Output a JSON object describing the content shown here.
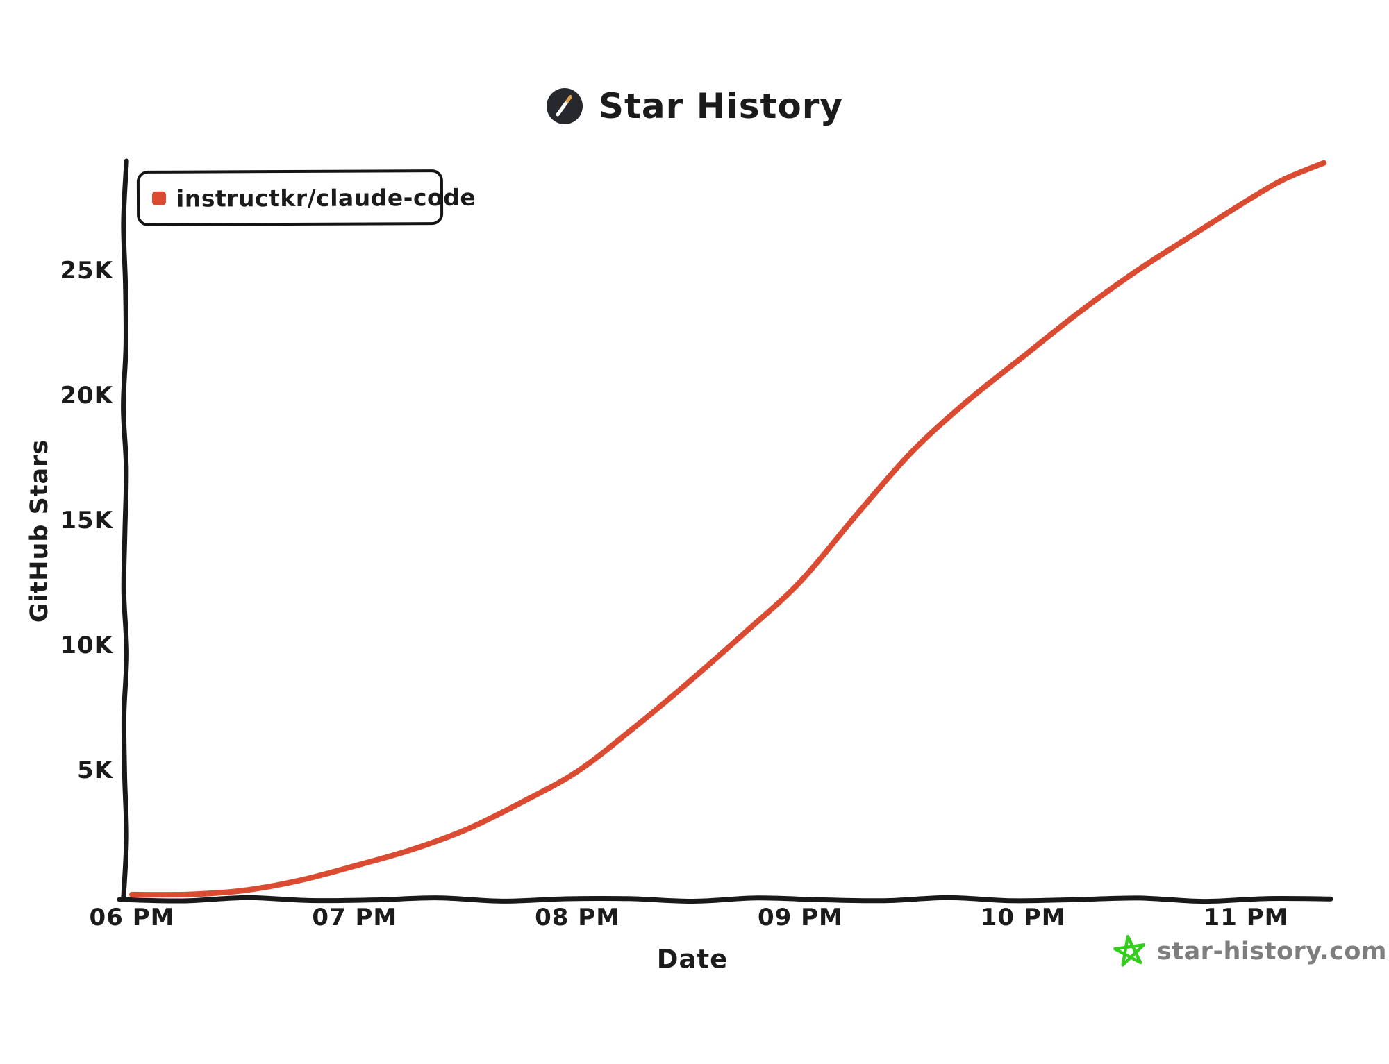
{
  "header": {
    "title": "Star History"
  },
  "legend": {
    "series_label": "instructkr/claude-code",
    "swatch_color": "#DB4B32"
  },
  "axes": {
    "y_title": "GitHub Stars",
    "x_title": "Date"
  },
  "footer": {
    "site": "star-history.com"
  },
  "colors": {
    "line": "#DB4B32",
    "axis": "#191919",
    "text": "#1b1b1b",
    "watermark_text": "#7e7e7e",
    "watermark_star": "#33CC1F",
    "logo_bg": "#26282D",
    "logo_wand": "#ffffff",
    "logo_tip": "#E0A04E",
    "background": "#ffffff"
  },
  "chart_data": {
    "type": "line",
    "title": "Star History",
    "xlabel": "Date",
    "ylabel": "GitHub Stars",
    "grid": false,
    "legend_position": "top-left",
    "style": "hand-drawn-xkcd",
    "x_tick_labels": [
      "06 PM",
      "07 PM",
      "08 PM",
      "09 PM",
      "10 PM",
      "11 PM"
    ],
    "x_tick_minutes": [
      0,
      60,
      120,
      180,
      240,
      300
    ],
    "y_tick_labels": [
      "5K",
      "10K",
      "15K",
      "20K",
      "25K"
    ],
    "y_tick_values": [
      5000,
      10000,
      15000,
      20000,
      25000
    ],
    "ylim": [
      0,
      29500
    ],
    "x_range_minutes": [
      0,
      321
    ],
    "series": [
      {
        "name": "instructkr/claude-code",
        "color": "#DB4B32",
        "points": [
          {
            "time": "6:00 PM",
            "minutes": 0,
            "stars": 30
          },
          {
            "time": "6:15 PM",
            "minutes": 15,
            "stars": 80
          },
          {
            "time": "6:30 PM",
            "minutes": 30,
            "stars": 180
          },
          {
            "time": "6:45 PM",
            "minutes": 45,
            "stars": 550
          },
          {
            "time": "7:00 PM",
            "minutes": 60,
            "stars": 1200
          },
          {
            "time": "7:15 PM",
            "minutes": 75,
            "stars": 1850
          },
          {
            "time": "7:30 PM",
            "minutes": 90,
            "stars": 2600
          },
          {
            "time": "7:45 PM",
            "minutes": 105,
            "stars": 3700
          },
          {
            "time": "8:00 PM",
            "minutes": 120,
            "stars": 5000
          },
          {
            "time": "8:15 PM",
            "minutes": 135,
            "stars": 6700
          },
          {
            "time": "8:30 PM",
            "minutes": 150,
            "stars": 8500
          },
          {
            "time": "8:45 PM",
            "minutes": 165,
            "stars": 10500
          },
          {
            "time": "9:00 PM",
            "minutes": 180,
            "stars": 12600
          },
          {
            "time": "9:15 PM",
            "minutes": 195,
            "stars": 15200
          },
          {
            "time": "9:30 PM",
            "minutes": 210,
            "stars": 17700
          },
          {
            "time": "9:45 PM",
            "minutes": 225,
            "stars": 19800
          },
          {
            "time": "10:00 PM",
            "minutes": 240,
            "stars": 21600
          },
          {
            "time": "10:15 PM",
            "minutes": 255,
            "stars": 23300
          },
          {
            "time": "10:30 PM",
            "minutes": 270,
            "stars": 24900
          },
          {
            "time": "10:45 PM",
            "minutes": 285,
            "stars": 26400
          },
          {
            "time": "11:00 PM",
            "minutes": 300,
            "stars": 27800
          },
          {
            "time": "11:10 PM",
            "minutes": 310,
            "stars": 28600
          },
          {
            "time": "11:21 PM",
            "minutes": 321,
            "stars": 29300
          }
        ]
      }
    ]
  }
}
